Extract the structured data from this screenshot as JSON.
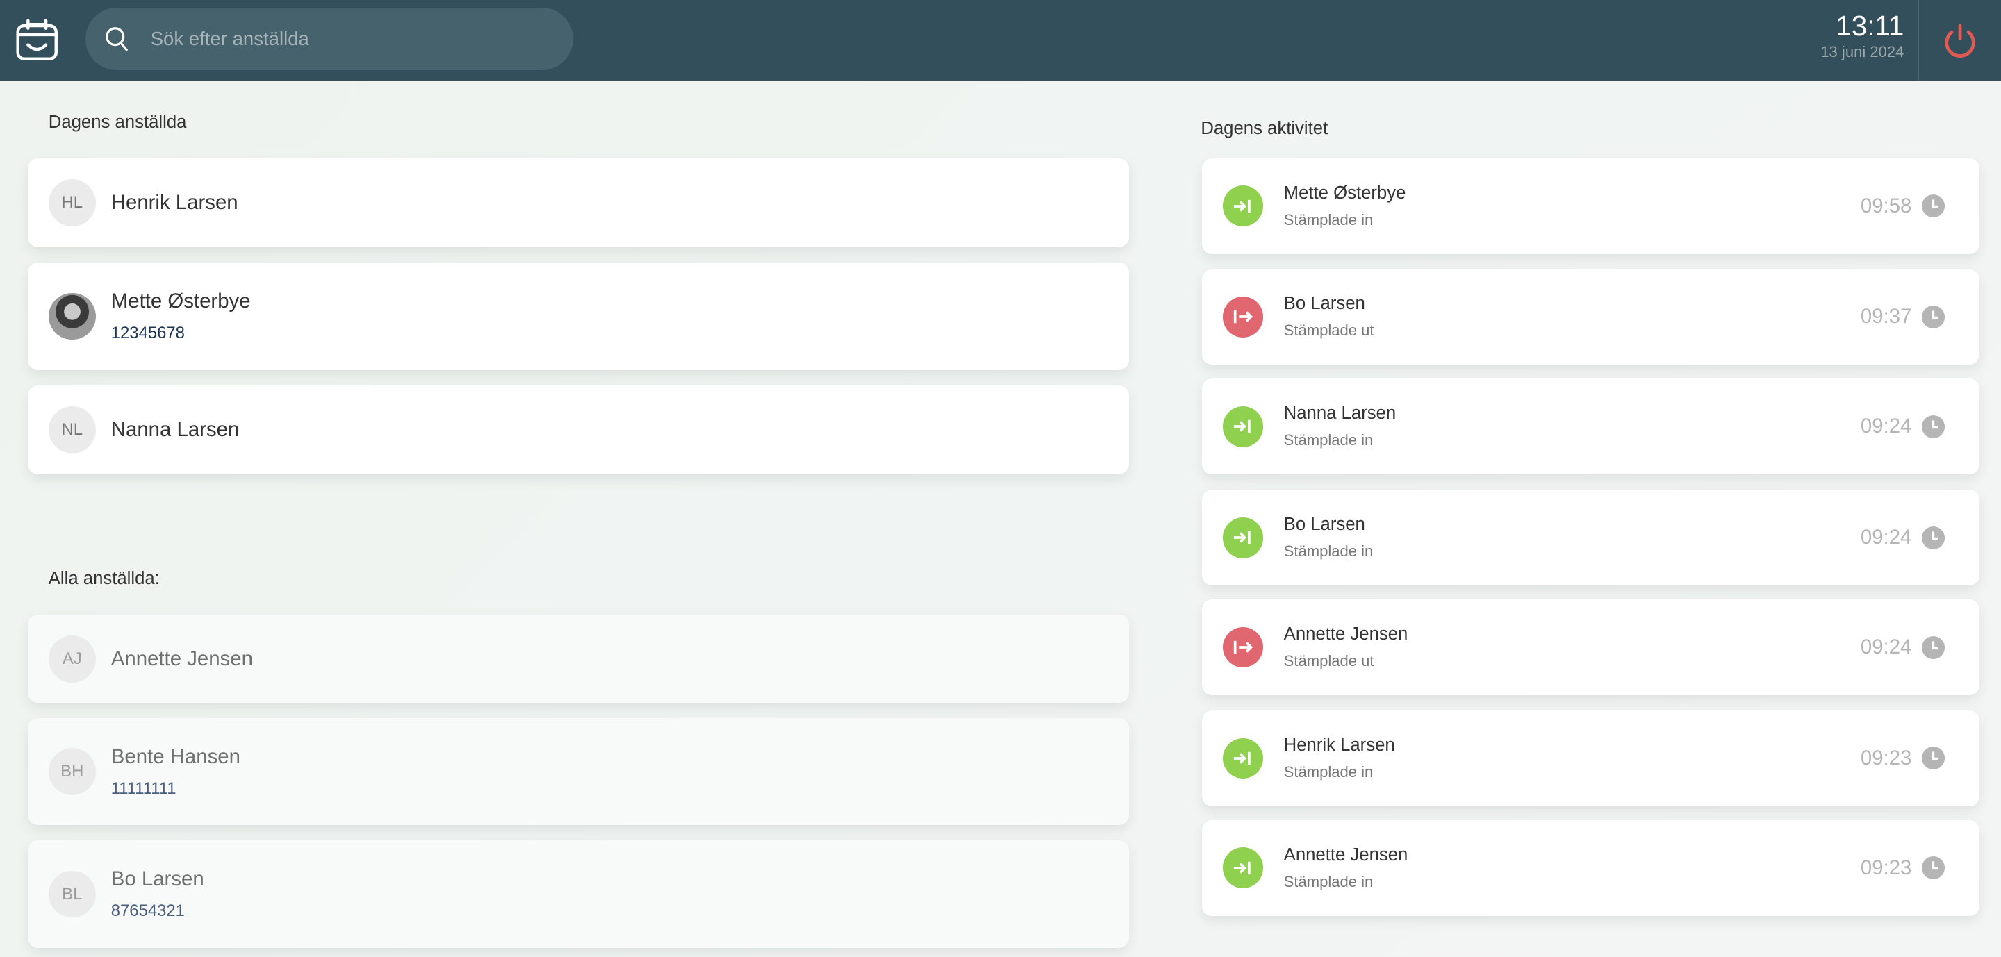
{
  "header": {
    "search_placeholder": "Sök efter anställda",
    "time": "13:11",
    "date": "13 juni 2024",
    "colors": {
      "background": "#334f5b",
      "power": "#e05a52"
    }
  },
  "today": {
    "title": "Dagens anställda",
    "employees": [
      {
        "initials": "HL",
        "name": "Henrik Larsen",
        "number": ""
      },
      {
        "initials": "",
        "name": "Mette Østerbye",
        "number": "12345678",
        "photo": true
      },
      {
        "initials": "NL",
        "name": "Nanna Larsen",
        "number": ""
      }
    ]
  },
  "all": {
    "title": "Alla anställda:",
    "employees": [
      {
        "initials": "AJ",
        "name": "Annette Jensen",
        "number": ""
      },
      {
        "initials": "BH",
        "name": "Bente Hansen",
        "number": "11111111"
      },
      {
        "initials": "BL",
        "name": "Bo Larsen",
        "number": "87654321"
      }
    ]
  },
  "activity": {
    "title": "Dagens aktivitet",
    "colors": {
      "in": "#8fd14f",
      "out": "#e06670"
    },
    "items": [
      {
        "name": "Mette Østerbye",
        "status": "Stämplade in",
        "type": "in",
        "time": "09:58"
      },
      {
        "name": "Bo Larsen",
        "status": "Stämplade ut",
        "type": "out",
        "time": "09:37"
      },
      {
        "name": "Nanna Larsen",
        "status": "Stämplade in",
        "type": "in",
        "time": "09:24"
      },
      {
        "name": "Bo Larsen",
        "status": "Stämplade in",
        "type": "in",
        "time": "09:24"
      },
      {
        "name": "Annette Jensen",
        "status": "Stämplade ut",
        "type": "out",
        "time": "09:24"
      },
      {
        "name": "Henrik Larsen",
        "status": "Stämplade in",
        "type": "in",
        "time": "09:23"
      },
      {
        "name": "Annette Jensen",
        "status": "Stämplade in",
        "type": "in",
        "time": "09:23"
      }
    ]
  }
}
